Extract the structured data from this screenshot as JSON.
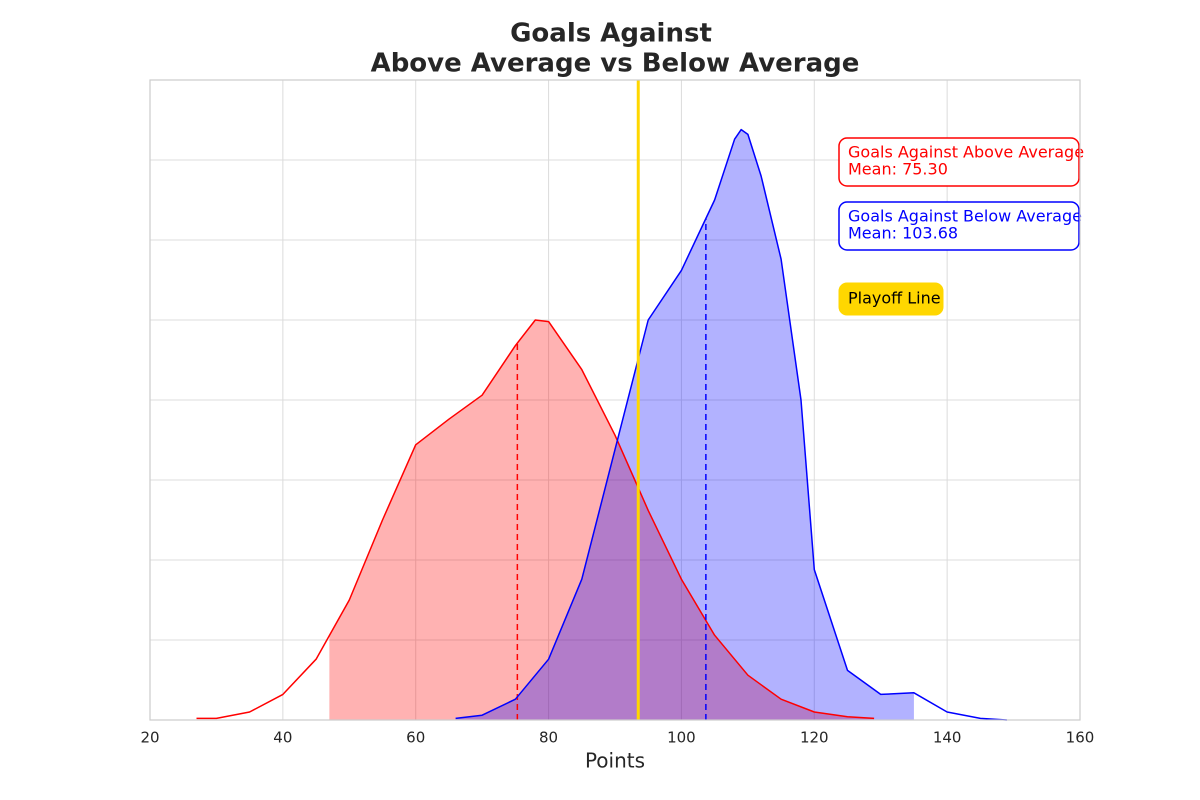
{
  "chart_data": {
    "type": "kde",
    "title": [
      "Goals Against",
      "Above Average vs Below Average"
    ],
    "xlabel": "Points",
    "xlim": [
      20,
      160
    ],
    "xticks": [
      20,
      40,
      60,
      80,
      100,
      120,
      140,
      160
    ],
    "ylim": [
      0,
      0.04
    ],
    "yticks": [
      0,
      0.005,
      0.01,
      0.015,
      0.02,
      0.025,
      0.03,
      0.035,
      0.04
    ],
    "ytick_labels": false,
    "grid": true,
    "series": [
      {
        "name": "Goals Against Above Average",
        "color": "#ff0000",
        "x": [
          27,
          30,
          35,
          40,
          45,
          50,
          55,
          60,
          65,
          70,
          75,
          78,
          80,
          85,
          90,
          95,
          100,
          105,
          110,
          115,
          120,
          125,
          129
        ],
        "values": [
          0.0001,
          0.0001,
          0.0005,
          0.0016,
          0.0038,
          0.0075,
          0.0125,
          0.0172,
          0.0188,
          0.0203,
          0.0234,
          0.025,
          0.0249,
          0.0219,
          0.0178,
          0.0131,
          0.0088,
          0.0053,
          0.0028,
          0.0013,
          0.0005,
          0.0002,
          0.0001
        ],
        "fill_range": [
          47,
          129
        ],
        "mean": 75.3,
        "mean_label": "Mean: 75.30"
      },
      {
        "name": "Goals Against Below Average",
        "color": "#0000ff",
        "x": [
          66,
          70,
          75,
          80,
          85,
          90,
          95,
          100,
          105,
          108,
          109,
          110,
          112,
          115,
          118,
          120,
          125,
          130,
          135,
          140,
          145,
          149
        ],
        "values": [
          0.0001,
          0.0003,
          0.0013,
          0.0038,
          0.0088,
          0.0169,
          0.025,
          0.0281,
          0.0325,
          0.0363,
          0.0369,
          0.0366,
          0.034,
          0.0288,
          0.02,
          0.0094,
          0.0031,
          0.0016,
          0.0017,
          0.0005,
          0.0001,
          0
        ],
        "fill_range": [
          66,
          135
        ],
        "mean": 103.68,
        "mean_label": "Mean: 103.68"
      }
    ],
    "playoff_line": {
      "value": 93.5,
      "label": "Playoff Line",
      "color": "#ffd700"
    }
  }
}
